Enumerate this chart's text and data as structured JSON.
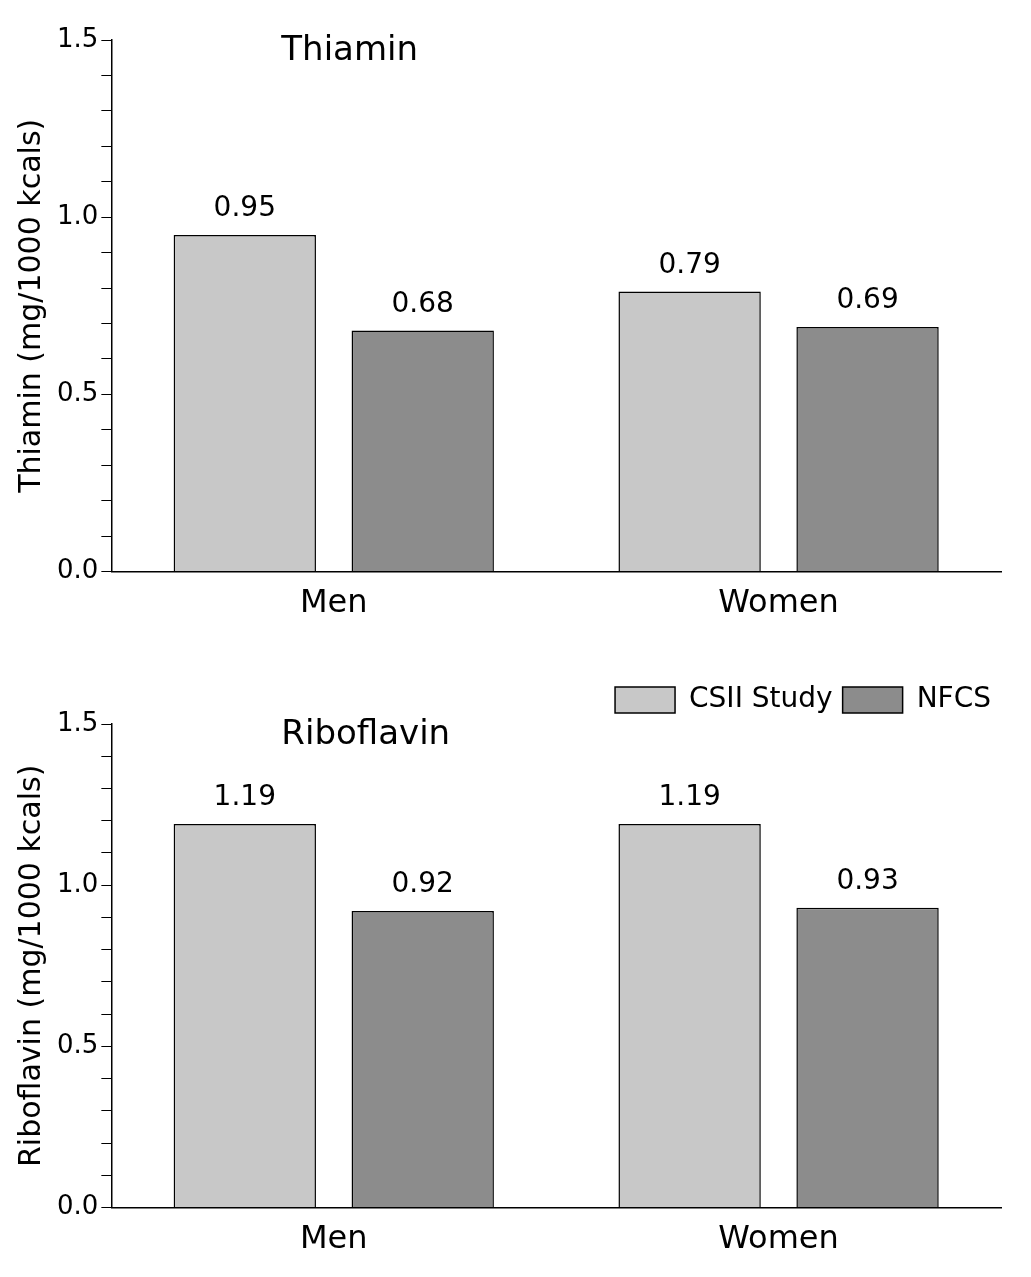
{
  "chart_data": [
    {
      "type": "bar",
      "title": "Thiamin",
      "ylabel": "Thiamin (mg/1000 kcals)",
      "categories": [
        "Men",
        "Women"
      ],
      "series": [
        {
          "color": "#c8c8c8",
          "values": [
            0.95,
            0.79
          ]
        },
        {
          "color": "#8c8c8c",
          "values": [
            0.68,
            0.69
          ]
        }
      ],
      "ylim": [
        0,
        1.5
      ],
      "yticks": [
        {
          "value": 0,
          "label": "0.0"
        },
        {
          "value": 0.1,
          "label": null
        },
        {
          "value": 0.2,
          "label": null
        },
        {
          "value": 0.3,
          "label": null
        },
        {
          "value": 0.4,
          "label": null
        },
        {
          "value": 0.5,
          "label": "0.5"
        },
        {
          "value": 0.6,
          "label": null
        },
        {
          "value": 0.7,
          "label": null
        },
        {
          "value": 0.8,
          "label": null
        },
        {
          "value": 0.9,
          "label": null
        },
        {
          "value": 1.0,
          "label": "1.0"
        },
        {
          "value": 1.1,
          "label": null
        },
        {
          "value": 1.2,
          "label": null
        },
        {
          "value": 1.3,
          "label": null
        },
        {
          "value": 1.4,
          "label": null
        },
        {
          "value": 1.5,
          "label": "1.5"
        }
      ],
      "data_labels": true,
      "grid": false
    },
    {
      "type": "bar",
      "title": "Riboflavin",
      "ylabel": "Riboflavin (mg/1000 kcals)",
      "categories": [
        "Men",
        "Women"
      ],
      "series": [
        {
          "name": "CSII Study",
          "color": "#c8c8c8",
          "values": [
            1.19,
            1.19
          ]
        },
        {
          "name": "NFCS",
          "color": "#8c8c8c",
          "values": [
            0.92,
            0.93
          ]
        }
      ],
      "ylim": [
        0,
        1.5
      ],
      "yticks": [
        {
          "value": 0,
          "label": "0.0"
        },
        {
          "value": 0.1,
          "label": null
        },
        {
          "value": 0.2,
          "label": null
        },
        {
          "value": 0.3,
          "label": null
        },
        {
          "value": 0.4,
          "label": null
        },
        {
          "value": 0.5,
          "label": "0.5"
        },
        {
          "value": 0.6,
          "label": null
        },
        {
          "value": 0.7,
          "label": null
        },
        {
          "value": 0.8,
          "label": null
        },
        {
          "value": 0.9,
          "label": null
        },
        {
          "value": 1.0,
          "label": "1.0"
        },
        {
          "value": 1.1,
          "label": null
        },
        {
          "value": 1.2,
          "label": null
        },
        {
          "value": 1.3,
          "label": null
        },
        {
          "value": 1.4,
          "label": null
        },
        {
          "value": 1.5,
          "label": "1.5"
        }
      ],
      "data_labels": true,
      "grid": false,
      "legend": "top right"
    }
  ]
}
